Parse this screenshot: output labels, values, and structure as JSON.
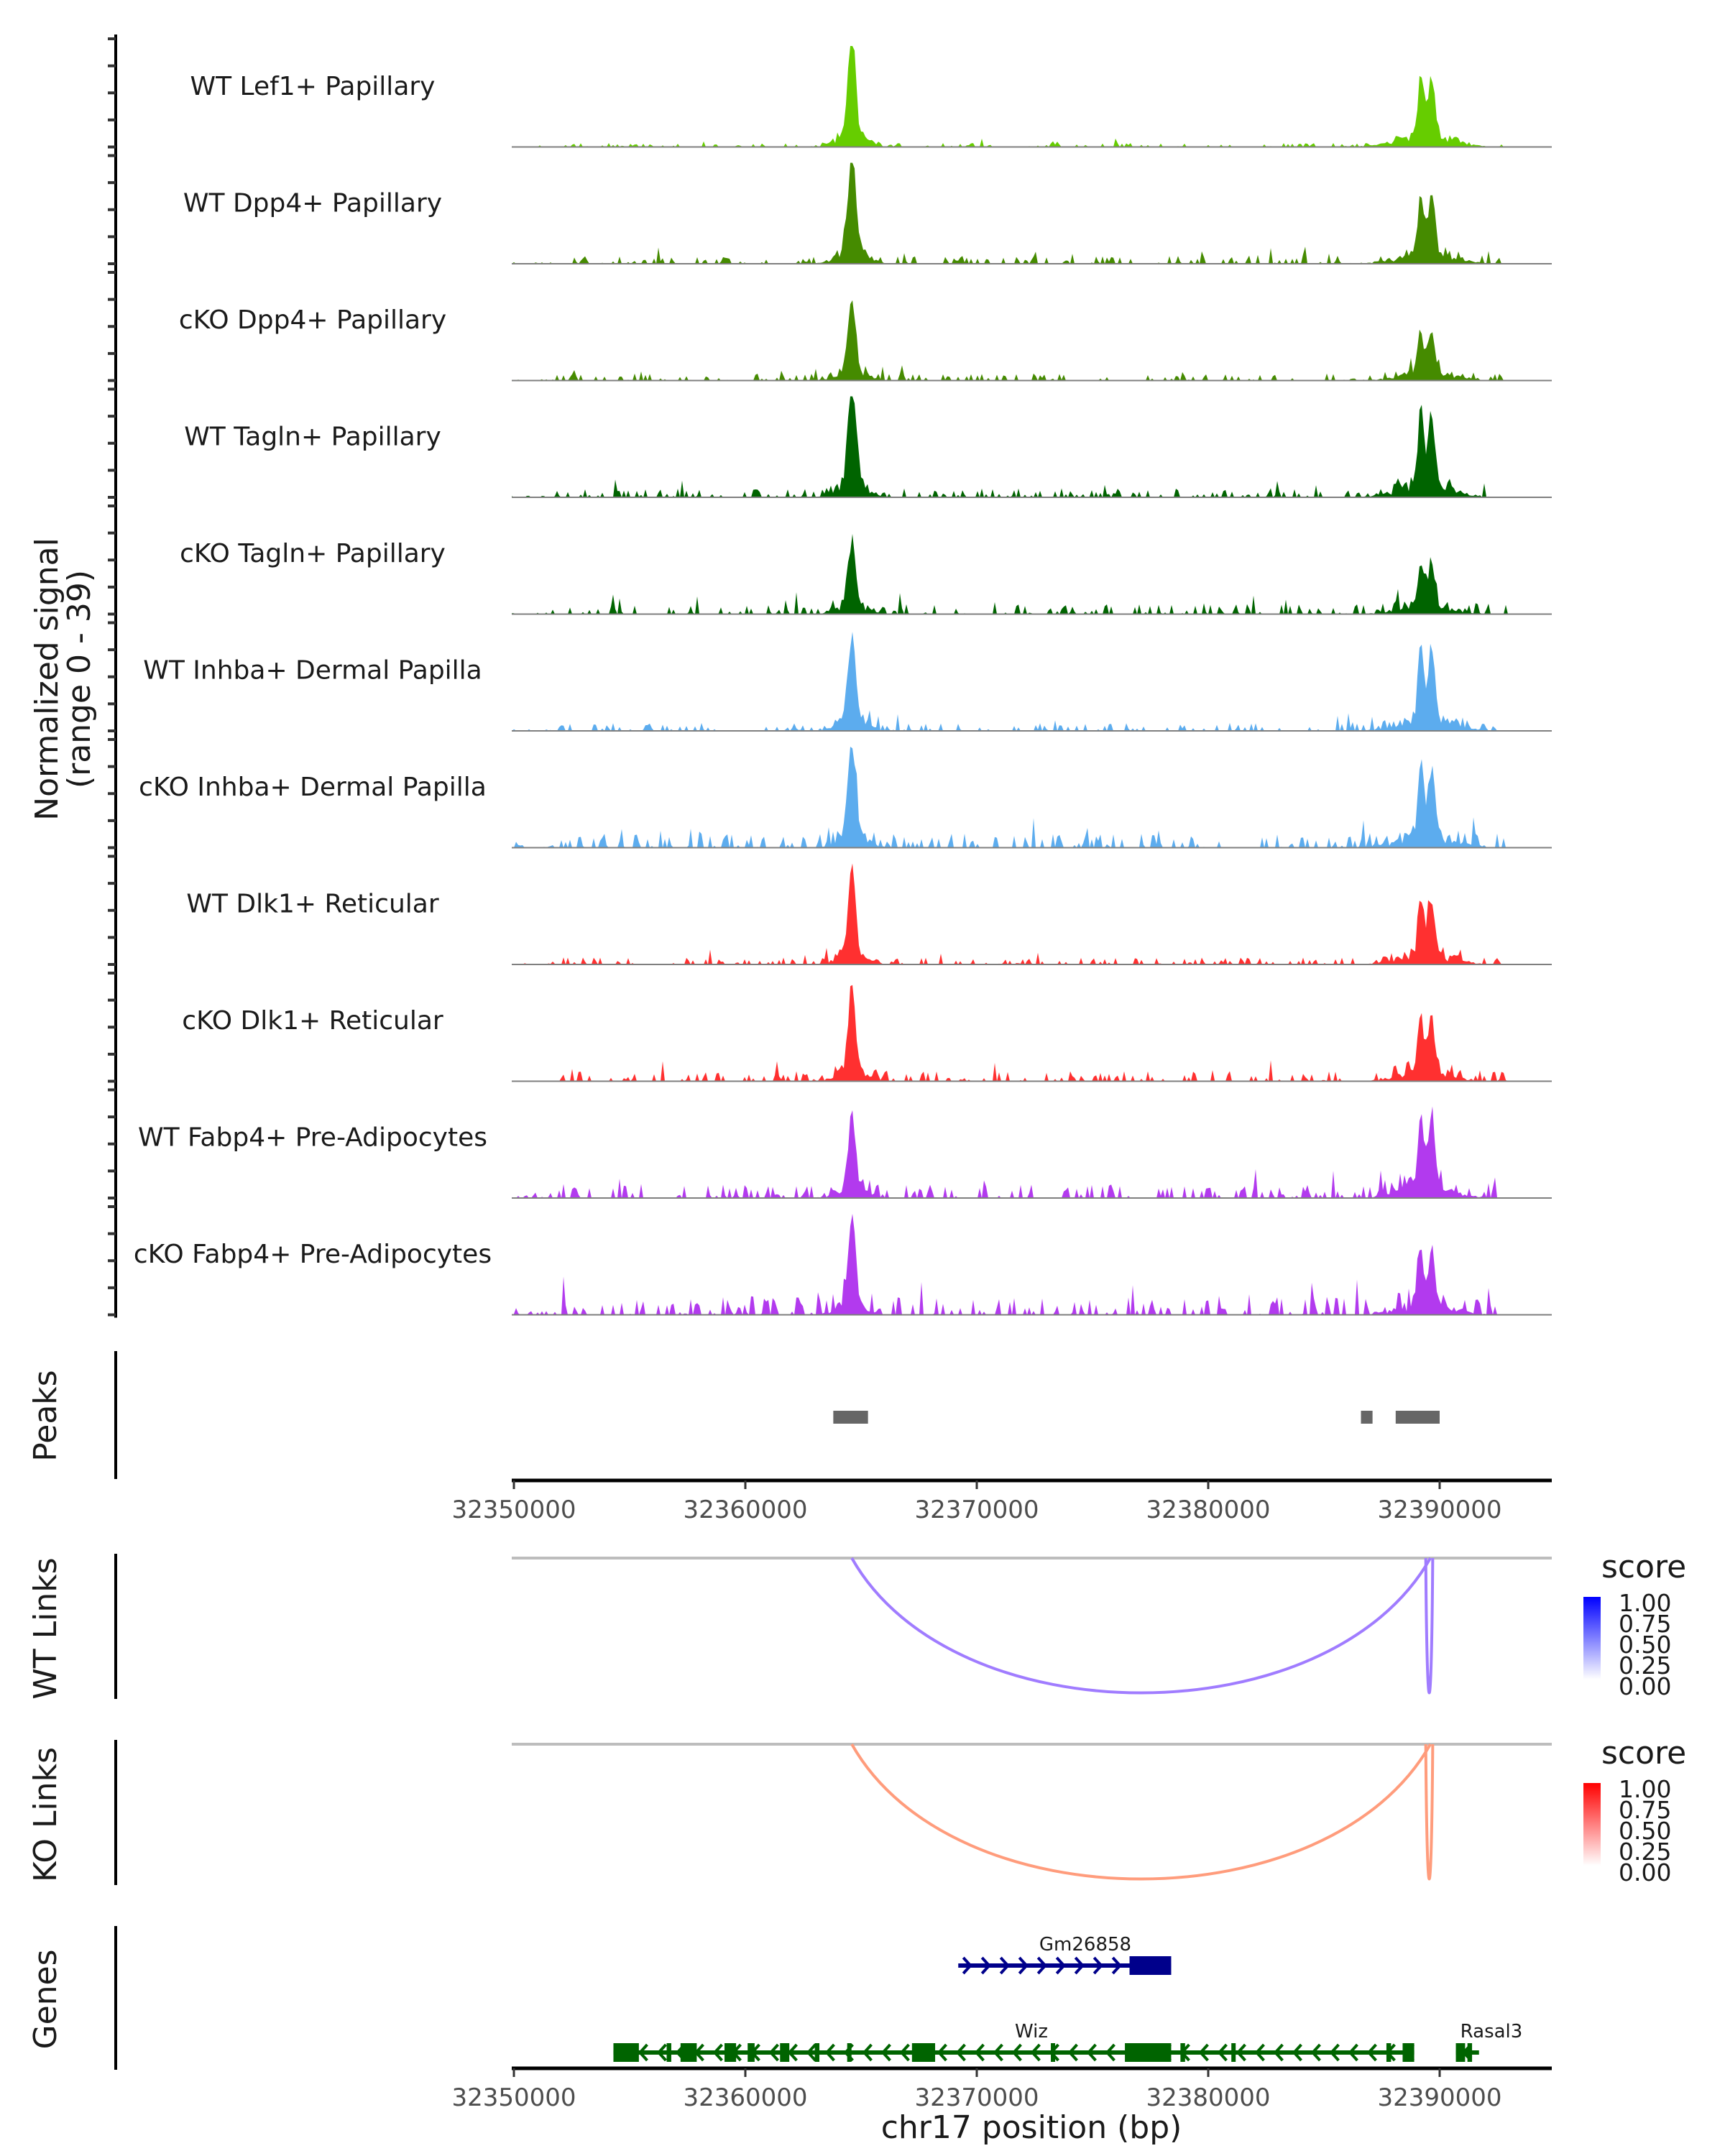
{
  "chart_data": {
    "type": "area",
    "title": "",
    "region": {
      "chrom": "chr17",
      "start": 32350000,
      "end": 32394500
    },
    "xlabel": "chr17 position (bp)",
    "x_ticks": [
      "32350000",
      "32360000",
      "32370000",
      "32380000",
      "32390000"
    ],
    "x_tick_values": [
      32350000,
      32360000,
      32370000,
      32380000,
      32390000
    ],
    "coverage": {
      "ylabel_line1": "Normalized signal",
      "ylabel_line2": "(range 0 - 39)",
      "ylim": [
        0,
        39
      ],
      "tracks": [
        {
          "name": "WT Lef1+ Papillary",
          "color": "#66CD00",
          "peak1_height": 0.92,
          "peak2_height": 0.62,
          "noise": 0.04
        },
        {
          "name": "WT Dpp4+ Papillary",
          "color": "#458B00",
          "peak1_height": 0.98,
          "peak2_height": 0.6,
          "noise": 0.08
        },
        {
          "name": "cKO Dpp4+ Papillary",
          "color": "#458B00",
          "peak1_height": 0.72,
          "peak2_height": 0.42,
          "noise": 0.07
        },
        {
          "name": "WT Tagln+ Papillary",
          "color": "#006400",
          "peak1_height": 1.0,
          "peak2_height": 0.75,
          "noise": 0.09
        },
        {
          "name": "cKO Tagln+ Papillary",
          "color": "#006400",
          "peak1_height": 0.58,
          "peak2_height": 0.45,
          "noise": 0.1
        },
        {
          "name": "WT Inhba+ Dermal Papilla",
          "color": "#5CACEE",
          "peak1_height": 0.8,
          "peak2_height": 0.7,
          "noise": 0.08
        },
        {
          "name": "cKO Inhba+ Dermal Papilla",
          "color": "#5CACEE",
          "peak1_height": 0.9,
          "peak2_height": 0.7,
          "noise": 0.14
        },
        {
          "name": "WT Dlk1+ Reticular",
          "color": "#FF3030",
          "peak1_height": 0.82,
          "peak2_height": 0.55,
          "noise": 0.07
        },
        {
          "name": "cKO Dlk1+ Reticular",
          "color": "#FF3030",
          "peak1_height": 0.8,
          "peak2_height": 0.5,
          "noise": 0.1
        },
        {
          "name": "WT Fabp4+ Pre-Adipocytes",
          "color": "#B23AEE",
          "peak1_height": 0.7,
          "peak2_height": 0.7,
          "noise": 0.14
        },
        {
          "name": "cKO Fabp4+ Pre-Adipocytes",
          "color": "#B23AEE",
          "peak1_height": 0.85,
          "peak2_height": 0.55,
          "noise": 0.18
        }
      ],
      "peak_centers": [
        32364600,
        32389400
      ]
    },
    "peaks": {
      "label": "Peaks",
      "color": "#666666",
      "regions": [
        [
          32363800,
          32365300
        ],
        [
          32386600,
          32387100
        ],
        [
          32388100,
          32390000
        ]
      ]
    },
    "links": [
      {
        "label": "WT Links",
        "color": "#A07CFF",
        "legend_title": "score",
        "legend_colors": [
          "#FFFFFF",
          "#0000FF"
        ],
        "legend_ticks": [
          "1.00",
          "0.75",
          "0.50",
          "0.25",
          "0.00"
        ],
        "arcs": [
          {
            "start": 32364600,
            "end": 32389600,
            "score": 0.5
          },
          {
            "start": 32389400,
            "end": 32389700,
            "score": 0.5
          }
        ]
      },
      {
        "label": "KO Links",
        "color": "#FF9C7C",
        "legend_title": "score",
        "legend_colors": [
          "#FFFFFF",
          "#FF0000"
        ],
        "legend_ticks": [
          "1.00",
          "0.75",
          "0.50",
          "0.25",
          "0.00"
        ],
        "arcs": [
          {
            "start": 32364600,
            "end": 32389600,
            "score": 0.5
          },
          {
            "start": 32389400,
            "end": 32389700,
            "score": 0.5
          }
        ]
      }
    ],
    "genes": {
      "label": "Genes",
      "items": [
        {
          "name": "Gm26858",
          "strand": "+",
          "color": "#00008B",
          "row": 0,
          "start": 32369200,
          "end": 32378400,
          "exons": [
            [
              32376600,
              32378400
            ]
          ]
        },
        {
          "name": "Wiz",
          "strand": "-",
          "color": "#006400",
          "row": 1,
          "start": 32354300,
          "end": 32388900,
          "exons": [
            [
              32354300,
              32355400
            ],
            [
              32356600,
              32356800
            ],
            [
              32357200,
              32357900
            ],
            [
              32359100,
              32359600
            ],
            [
              32360100,
              32360400
            ],
            [
              32361500,
              32361900
            ],
            [
              32363000,
              32363200
            ],
            [
              32364400,
              32364500
            ],
            [
              32367200,
              32368200
            ],
            [
              32373200,
              32373300
            ],
            [
              32376400,
              32378400
            ],
            [
              32378800,
              32379000
            ],
            [
              32381000,
              32381100
            ],
            [
              32387700,
              32387900
            ],
            [
              32388400,
              32388900
            ]
          ]
        },
        {
          "name": "Rasal3",
          "strand": "-",
          "color": "#006400",
          "row": 1,
          "start": 32390700,
          "end": 32391700,
          "exons": [
            [
              32390700,
              32391100
            ],
            [
              32391200,
              32391400
            ]
          ]
        }
      ]
    }
  }
}
